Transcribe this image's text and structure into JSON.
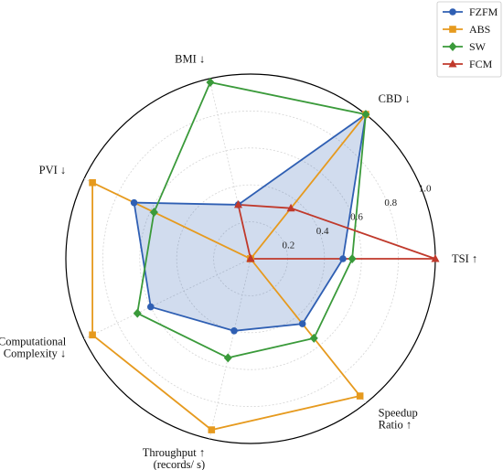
{
  "chart_data": {
    "type": "radar",
    "axes": [
      {
        "label": [
          "TSI ↑"
        ]
      },
      {
        "label": [
          "CBD ↓"
        ]
      },
      {
        "label": [
          "BMI ↓"
        ]
      },
      {
        "label": [
          "PVI ↓"
        ]
      },
      {
        "label": [
          "Computational",
          "Complexity ↓"
        ]
      },
      {
        "label": [
          "Throughput ↑",
          "(records/ s)"
        ]
      },
      {
        "label": [
          "Speedup",
          "Ratio ↑"
        ]
      }
    ],
    "r_ticks": [
      "0.2",
      "0.4",
      "0.6",
      "0.8",
      "1.0"
    ],
    "r_range": [
      0,
      1.0
    ],
    "grid": true,
    "legend_position": "top-right",
    "series": [
      {
        "name": "FZFM",
        "color": "#2f5fb3",
        "marker": "circle",
        "fill": true,
        "values": [
          0.5,
          1.0,
          0.3,
          0.7,
          0.6,
          0.4,
          0.45
        ]
      },
      {
        "name": "ABS",
        "color": "#e69a1e",
        "marker": "square",
        "fill": false,
        "values": [
          0.0,
          1.0,
          0.0,
          0.95,
          0.95,
          0.95,
          0.95
        ]
      },
      {
        "name": "SW",
        "color": "#3a9a3a",
        "marker": "diamond",
        "fill": false,
        "values": [
          0.55,
          1.0,
          0.98,
          0.58,
          0.68,
          0.55,
          0.55
        ]
      },
      {
        "name": "FCM",
        "color": "#c0392b",
        "marker": "triangle",
        "fill": false,
        "values": [
          1.0,
          0.35,
          0.3,
          0.0,
          0.0,
          0.0,
          0.0
        ]
      }
    ]
  }
}
